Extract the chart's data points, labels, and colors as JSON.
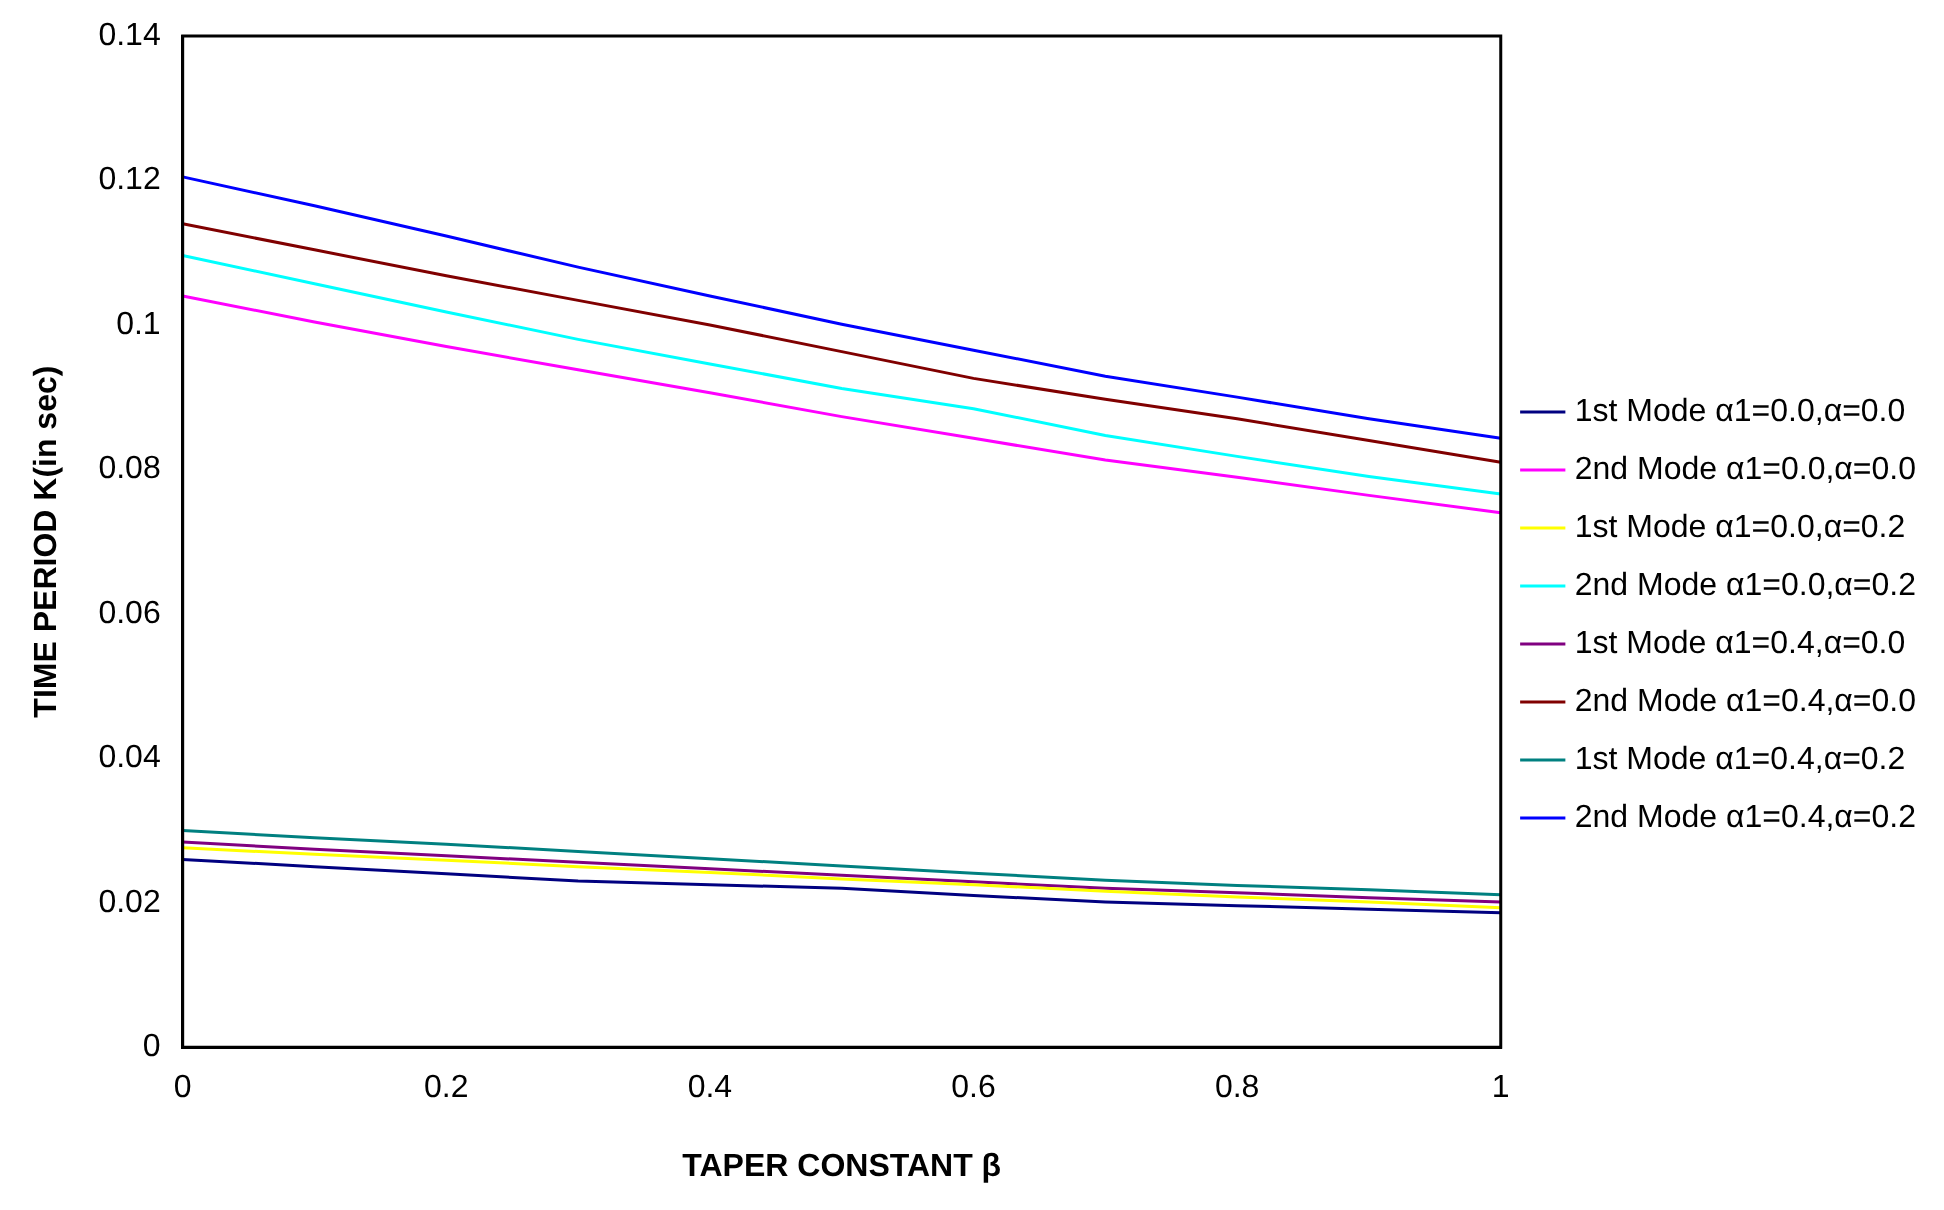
{
  "chart_data": {
    "type": "line",
    "xlabel": "TAPER CONSTANT β",
    "ylabel": "TIME PERIOD K(in sec)",
    "x": [
      0,
      0.1,
      0.2,
      0.3,
      0.4,
      0.5,
      0.6,
      0.7,
      0.8,
      0.9,
      1
    ],
    "xlim": [
      0,
      1
    ],
    "xticks": [
      0,
      0.2,
      0.4,
      0.6,
      0.8,
      1
    ],
    "ylim": [
      0,
      0.14
    ],
    "yticks": [
      0,
      0.02,
      0.04,
      0.06,
      0.08,
      0.1,
      0.12,
      0.14
    ],
    "grid": false,
    "legend": "right",
    "marker": "none",
    "line_style": "solid",
    "series": [
      {
        "name": "1st Mode α1=0.0,α=0.0",
        "color": "#000080",
        "values": [
          0.026,
          0.025,
          0.024,
          0.023,
          0.0225,
          0.022,
          0.021,
          0.0201,
          0.0196,
          0.0191,
          0.0186
        ]
      },
      {
        "name": "2nd Mode α1=0.0,α=0.0",
        "color": "#ff00ff",
        "values": [
          0.104,
          0.1004,
          0.097,
          0.0938,
          0.0906,
          0.0873,
          0.0843,
          0.0813,
          0.0789,
          0.0764,
          0.074
        ]
      },
      {
        "name": "1st Mode α1=0.0,α=0.2",
        "color": "#ffff00",
        "values": [
          0.0276,
          0.0267,
          0.0259,
          0.025,
          0.0242,
          0.0233,
          0.0225,
          0.0216,
          0.0208,
          0.0201,
          0.0193
        ]
      },
      {
        "name": "2nd Mode α1=0.0,α=0.2",
        "color": "#00ffff",
        "values": [
          0.1096,
          0.1057,
          0.1018,
          0.098,
          0.0946,
          0.0912,
          0.0884,
          0.0847,
          0.0818,
          0.079,
          0.0766
        ]
      },
      {
        "name": "1st Mode α1=0.4,α=0.0",
        "color": "#800080",
        "values": [
          0.0284,
          0.0274,
          0.0265,
          0.0256,
          0.0247,
          0.0238,
          0.0229,
          0.022,
          0.0214,
          0.0207,
          0.0201
        ]
      },
      {
        "name": "2nd Mode α1=0.4,α=0.0",
        "color": "#800000",
        "values": [
          0.114,
          0.1104,
          0.1068,
          0.1034,
          0.1,
          0.0963,
          0.0926,
          0.0897,
          0.087,
          0.084,
          0.081
        ]
      },
      {
        "name": "1st Mode α1=0.4,α=0.2",
        "color": "#008080",
        "values": [
          0.03,
          0.029,
          0.0281,
          0.0271,
          0.0261,
          0.0251,
          0.0241,
          0.0231,
          0.0224,
          0.0218,
          0.0211
        ]
      },
      {
        "name": "2nd Mode α1=0.4,α=0.2",
        "color": "#0000ff",
        "values": [
          0.1205,
          0.1165,
          0.1123,
          0.108,
          0.104,
          0.1001,
          0.0965,
          0.0929,
          0.09,
          0.087,
          0.0843
        ]
      }
    ]
  }
}
